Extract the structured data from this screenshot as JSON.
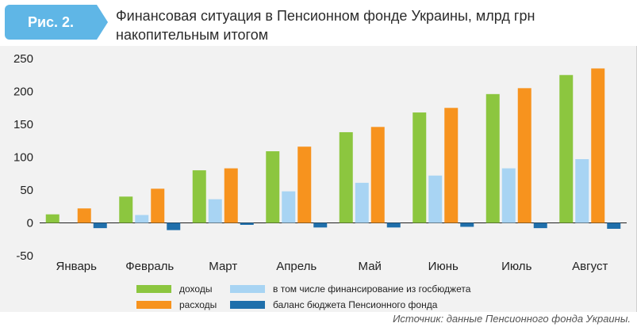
{
  "figure": {
    "label": "Рис. 2.",
    "title_line1": "Финансовая ситуация в Пенсионном фонде Украины, млрд грн",
    "title_line2": "накопительным итогом"
  },
  "source": "Источник: данные Пенсионного фонда Украины.",
  "colors": {
    "income": "#8cc63f",
    "budget_financing": "#a8d4f3",
    "expenses": "#f7931e",
    "balance": "#1f6fab",
    "tab": "#5fb6e6"
  },
  "chart_data": {
    "type": "bar",
    "title": "Финансовая ситуация в Пенсионном фонде Украины, млрд грн накопительным итогом",
    "xlabel": "",
    "ylabel": "",
    "ylim": [
      -50,
      250
    ],
    "yticks": [
      -50,
      0,
      50,
      100,
      150,
      200,
      250
    ],
    "grid": false,
    "legend_position": "bottom",
    "categories": [
      "Январь",
      "Февраль",
      "Март",
      "Апрель",
      "Май",
      "Июнь",
      "Июль",
      "Август"
    ],
    "series": [
      {
        "name": "доходы",
        "color_key": "income",
        "values": [
          13,
          40,
          80,
          109,
          138,
          168,
          196,
          225
        ]
      },
      {
        "name": "в том числе финансирование из госбюджета",
        "color_key": "budget_financing",
        "values": [
          0,
          12,
          36,
          48,
          61,
          72,
          83,
          97
        ]
      },
      {
        "name": "расходы",
        "color_key": "expenses",
        "values": [
          22,
          52,
          83,
          116,
          146,
          175,
          205,
          235
        ]
      },
      {
        "name": "баланс бюджета Пенсионного фонда",
        "color_key": "balance",
        "values": [
          -8,
          -11,
          -3,
          -7,
          -7,
          -6,
          -8,
          -9
        ]
      }
    ],
    "legend_order": [
      0,
      1,
      2,
      3
    ]
  }
}
